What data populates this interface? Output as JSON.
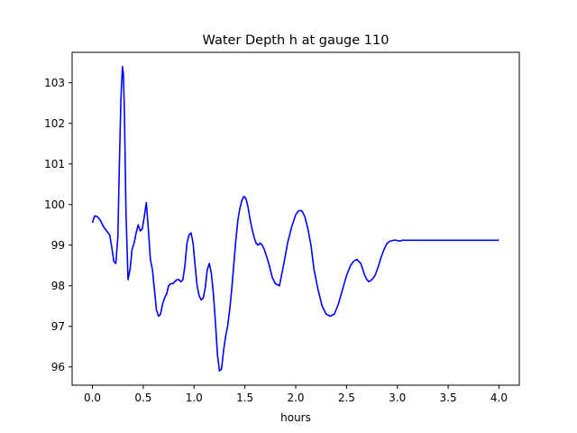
{
  "chart_data": {
    "type": "line",
    "title": "Water Depth h at gauge 110",
    "xlabel": "hours",
    "ylabel": "",
    "xlim": [
      -0.2,
      4.2
    ],
    "ylim": [
      95.55,
      103.75
    ],
    "xticks": [
      0.0,
      0.5,
      1.0,
      1.5,
      2.0,
      2.5,
      3.0,
      3.5,
      4.0
    ],
    "xtick_labels": [
      "0.0",
      "0.5",
      "1.0",
      "1.5",
      "2.0",
      "2.5",
      "3.0",
      "3.5",
      "4.0"
    ],
    "yticks": [
      96,
      97,
      98,
      99,
      100,
      101,
      102,
      103
    ],
    "ytick_labels": [
      "96",
      "97",
      "98",
      "99",
      "100",
      "101",
      "102",
      "103"
    ],
    "grid": false,
    "series": [
      {
        "color": "#0000ff",
        "x": [
          0.0,
          0.02,
          0.05,
          0.08,
          0.11,
          0.14,
          0.17,
          0.19,
          0.21,
          0.23,
          0.25,
          0.265,
          0.28,
          0.295,
          0.305,
          0.315,
          0.33,
          0.35,
          0.37,
          0.39,
          0.41,
          0.43,
          0.45,
          0.47,
          0.49,
          0.51,
          0.53,
          0.55,
          0.57,
          0.59,
          0.61,
          0.63,
          0.65,
          0.67,
          0.69,
          0.71,
          0.73,
          0.75,
          0.77,
          0.79,
          0.81,
          0.83,
          0.85,
          0.87,
          0.89,
          0.91,
          0.93,
          0.95,
          0.97,
          0.99,
          1.01,
          1.03,
          1.05,
          1.07,
          1.09,
          1.11,
          1.13,
          1.15,
          1.17,
          1.19,
          1.21,
          1.23,
          1.25,
          1.27,
          1.29,
          1.31,
          1.33,
          1.35,
          1.37,
          1.39,
          1.41,
          1.43,
          1.45,
          1.47,
          1.49,
          1.51,
          1.53,
          1.55,
          1.57,
          1.59,
          1.61,
          1.63,
          1.65,
          1.67,
          1.69,
          1.71,
          1.74,
          1.77,
          1.8,
          1.84,
          1.88,
          1.92,
          1.96,
          2.0,
          2.03,
          2.06,
          2.09,
          2.12,
          2.15,
          2.18,
          2.22,
          2.26,
          2.3,
          2.34,
          2.38,
          2.42,
          2.46,
          2.5,
          2.54,
          2.57,
          2.6,
          2.62,
          2.64,
          2.66,
          2.68,
          2.7,
          2.72,
          2.75,
          2.78,
          2.81,
          2.84,
          2.87,
          2.9,
          2.93,
          2.96,
          2.99,
          3.02,
          3.05,
          3.08,
          3.11,
          3.14,
          3.17,
          3.2,
          3.24,
          3.28,
          3.32,
          3.36,
          3.4,
          3.44,
          3.48,
          3.52,
          3.56,
          3.6,
          3.64,
          3.68,
          3.72,
          3.76,
          3.8,
          3.84,
          3.88,
          3.92,
          3.96,
          4.0
        ],
        "values": [
          99.55,
          99.72,
          99.7,
          99.6,
          99.45,
          99.35,
          99.25,
          98.95,
          98.6,
          98.55,
          99.2,
          101.0,
          102.6,
          103.4,
          103.2,
          102.2,
          99.8,
          98.15,
          98.4,
          98.9,
          99.05,
          99.3,
          99.5,
          99.35,
          99.4,
          99.7,
          100.05,
          99.4,
          98.65,
          98.4,
          97.9,
          97.4,
          97.25,
          97.3,
          97.55,
          97.7,
          97.8,
          98.0,
          98.05,
          98.05,
          98.1,
          98.15,
          98.15,
          98.1,
          98.15,
          98.5,
          99.05,
          99.25,
          99.3,
          99.05,
          98.5,
          98.0,
          97.75,
          97.65,
          97.7,
          97.95,
          98.4,
          98.55,
          98.3,
          97.8,
          97.1,
          96.3,
          95.9,
          95.95,
          96.4,
          96.75,
          97.0,
          97.4,
          97.9,
          98.5,
          99.1,
          99.6,
          99.9,
          100.1,
          100.2,
          100.15,
          99.95,
          99.65,
          99.4,
          99.2,
          99.05,
          99.0,
          99.05,
          99.0,
          98.9,
          98.75,
          98.5,
          98.2,
          98.05,
          98.0,
          98.5,
          99.05,
          99.45,
          99.75,
          99.85,
          99.85,
          99.7,
          99.4,
          99.0,
          98.4,
          97.9,
          97.5,
          97.3,
          97.25,
          97.3,
          97.55,
          97.9,
          98.25,
          98.5,
          98.6,
          98.65,
          98.6,
          98.55,
          98.4,
          98.25,
          98.15,
          98.1,
          98.15,
          98.25,
          98.45,
          98.7,
          98.9,
          99.05,
          99.1,
          99.12,
          99.12,
          99.1,
          99.12,
          99.12,
          99.12,
          99.12,
          99.12,
          99.12,
          99.12,
          99.12,
          99.12,
          99.12,
          99.12,
          99.12,
          99.12,
          99.12,
          99.12,
          99.12,
          99.12,
          99.12,
          99.12,
          99.12,
          99.12,
          99.12,
          99.12,
          99.12,
          99.12,
          99.12
        ]
      }
    ]
  }
}
